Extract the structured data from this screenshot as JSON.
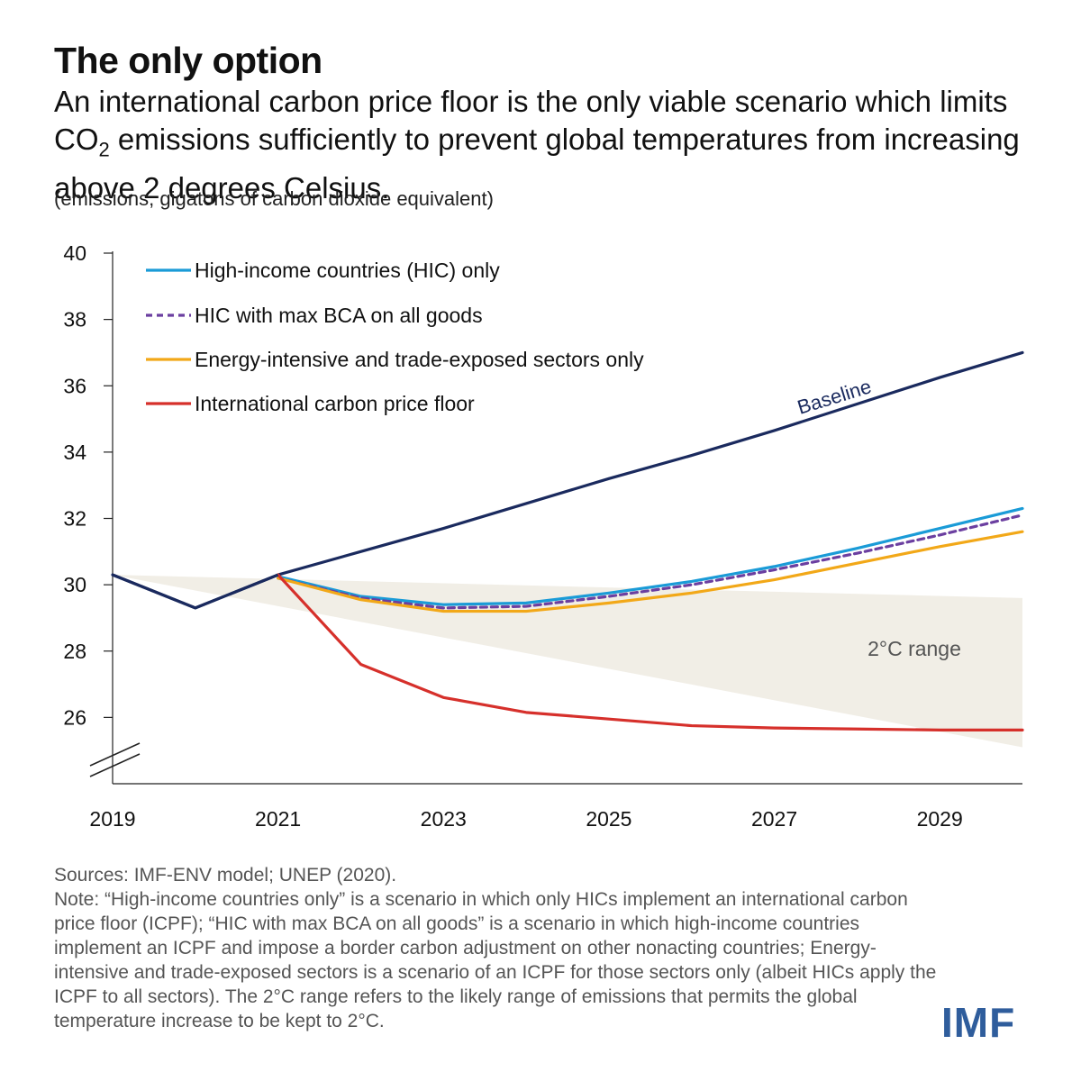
{
  "header": {
    "title": "The only option",
    "subtitle_before": "An international carbon price floor is the only viable scenario which limits CO",
    "subtitle_sub": "2",
    "subtitle_after": " emissions sufficiently to prevent global temperatures from increasing above 2 degrees Celsius.",
    "unit": "(emissions, gigatons of carbon dioxide equivalent)"
  },
  "chart_data": {
    "type": "line",
    "x": [
      2019,
      2020,
      2021,
      2022,
      2023,
      2024,
      2025,
      2026,
      2027,
      2028,
      2029,
      2030
    ],
    "x_ticks": [
      2019,
      2021,
      2023,
      2025,
      2027,
      2029
    ],
    "y_ticks": [
      26,
      28,
      30,
      32,
      34,
      36,
      38,
      40
    ],
    "ylim": [
      24,
      40
    ],
    "xlim": [
      2019,
      2030
    ],
    "axis_break": true,
    "grid": false,
    "legend_position": "top-left",
    "series": [
      {
        "name": "Baseline",
        "color": "#1a2a5e",
        "dash": false,
        "values": [
          30.3,
          29.3,
          30.3,
          31.0,
          31.7,
          32.45,
          33.2,
          33.9,
          34.65,
          35.45,
          36.25,
          37.0
        ]
      },
      {
        "name": "High-income countries (HIC) only",
        "color": "#1a9bd7",
        "dash": false,
        "values": [
          null,
          null,
          30.25,
          29.65,
          29.4,
          29.45,
          29.75,
          30.1,
          30.55,
          31.1,
          31.7,
          32.3
        ]
      },
      {
        "name": "HIC with max BCA on all goods",
        "color": "#6b3fa0",
        "dash": true,
        "values": [
          null,
          null,
          30.2,
          29.6,
          29.3,
          29.35,
          29.65,
          30.0,
          30.45,
          30.95,
          31.5,
          32.1
        ]
      },
      {
        "name": "Energy-intensive and trade-exposed sectors only",
        "color": "#f2a818",
        "dash": false,
        "values": [
          null,
          null,
          30.2,
          29.55,
          29.2,
          29.2,
          29.45,
          29.75,
          30.15,
          30.65,
          31.15,
          31.6
        ]
      },
      {
        "name": "International carbon price floor",
        "color": "#d6302b",
        "dash": false,
        "values": [
          null,
          null,
          30.3,
          27.6,
          26.6,
          26.15,
          25.95,
          25.75,
          25.68,
          25.65,
          25.62,
          25.62
        ]
      }
    ],
    "band": {
      "name": "2°C range",
      "color": "#f1eee6",
      "x": [
        2019,
        2030
      ],
      "upper": [
        30.3,
        29.6
      ],
      "lower": [
        30.3,
        25.1
      ]
    },
    "annotations": {
      "baseline_label": "Baseline",
      "band_label": "2°C range"
    }
  },
  "footer": {
    "sources": "Sources: IMF-ENV model; UNEP (2020).",
    "note": "Note: “High-income countries only” is a scenario in which only HICs implement an international carbon price floor (ICPF); “HIC with max BCA on all goods” is a scenario in which high-income countries implement an ICPF and impose a border carbon adjustment on other nonacting countries; Energy-intensive and trade-exposed sectors is a scenario of an ICPF for those sectors only (albeit HICs apply the ICPF to all sectors).  The 2°C range refers to the likely range of emissions that permits the global temperature increase to be kept to 2°C.",
    "logo": "IMF"
  }
}
